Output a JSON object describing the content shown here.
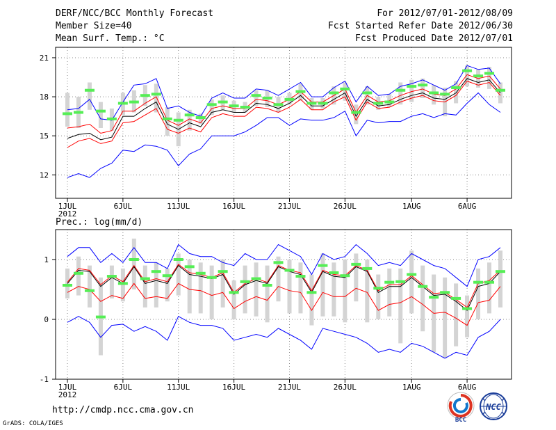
{
  "header": {
    "title": "DERF/NCC/BCC Monthly Forecast",
    "member_size": "Member Size=40",
    "variable": "Mean Surf. Temp.: °C",
    "period": "For 2012/07/01-2012/08/09",
    "refer_date": "Fcst Started Refer Date 2012/06/30",
    "produced_date": "Fcst Produced Date 2012/07/01"
  },
  "footer": {
    "url": "http://cmdp.ncc.cma.gov.cn",
    "grads_credit": "GrADS: COLA/IGES",
    "logo_bcc_text": "BCC",
    "logo_ncc_text": "NCC"
  },
  "colors": {
    "box": "#d4d4d4",
    "ensemble_mean": "#000000",
    "envelope": "#0000ff",
    "lower_line": "#ff0000",
    "observed": "#55ee55",
    "grid": "#888888"
  },
  "chart_data": [
    {
      "type": "line",
      "title": "Mean Surf. Temp.: °C",
      "x_tick_labels": [
        "1JUL",
        "6JUL",
        "11JUL",
        "16JUL",
        "21JUL",
        "26JUL",
        "1AUG",
        "6AUG"
      ],
      "x_tick_days": [
        1,
        6,
        11,
        16,
        21,
        26,
        32,
        37
      ],
      "x_year_label": "2012",
      "days": [
        1,
        2,
        3,
        4,
        5,
        6,
        7,
        8,
        9,
        10,
        11,
        12,
        13,
        14,
        15,
        16,
        17,
        18,
        19,
        20,
        21,
        22,
        23,
        24,
        25,
        26,
        27,
        28,
        29,
        30,
        31,
        32,
        33,
        34,
        35,
        36,
        37,
        38,
        39,
        40
      ],
      "ylim": [
        10.2,
        21.8
      ],
      "yticks": [
        12,
        15,
        18,
        21
      ],
      "series": [
        {
          "name": "ensemble_max",
          "color": "#0000ff",
          "values": [
            17.0,
            17.1,
            17.8,
            16.3,
            16.2,
            17.6,
            18.9,
            19.0,
            19.4,
            17.1,
            17.3,
            16.8,
            16.5,
            17.9,
            18.3,
            17.9,
            17.9,
            18.6,
            18.5,
            18.1,
            18.6,
            19.1,
            18.0,
            18.0,
            18.7,
            19.2,
            17.6,
            18.8,
            18.1,
            18.2,
            18.8,
            19.0,
            19.3,
            18.9,
            18.5,
            19.0,
            20.4,
            20.1,
            20.2,
            19.0
          ]
        },
        {
          "name": "ensemble_mean",
          "color": "#000000",
          "values": [
            14.8,
            15.1,
            15.2,
            14.7,
            14.9,
            16.5,
            16.5,
            17.1,
            17.6,
            15.9,
            15.5,
            16.0,
            15.7,
            16.8,
            17.0,
            16.8,
            16.8,
            17.5,
            17.4,
            17.1,
            17.5,
            18.1,
            17.3,
            17.3,
            17.8,
            18.3,
            16.5,
            17.8,
            17.3,
            17.4,
            17.8,
            18.1,
            18.3,
            17.9,
            17.8,
            18.3,
            19.4,
            19.1,
            19.3,
            18.3
          ]
        },
        {
          "name": "lower_line",
          "color": "#ff0000",
          "values": [
            14.1,
            14.6,
            14.8,
            14.4,
            14.6,
            16.0,
            16.1,
            16.6,
            17.1,
            15.5,
            15.2,
            15.6,
            15.3,
            16.4,
            16.7,
            16.5,
            16.5,
            17.2,
            17.1,
            16.8,
            17.2,
            17.8,
            17.0,
            17.0,
            17.6,
            18.0,
            16.2,
            17.6,
            17.1,
            17.2,
            17.6,
            17.9,
            18.1,
            17.7,
            17.6,
            18.1,
            19.2,
            18.9,
            19.1,
            18.1
          ]
        },
        {
          "name": "upper_line",
          "color": "#ff0000",
          "values": [
            15.6,
            15.7,
            15.9,
            15.2,
            15.4,
            16.9,
            16.9,
            17.5,
            18.0,
            16.2,
            15.8,
            16.3,
            16.0,
            17.1,
            17.3,
            17.1,
            17.1,
            17.8,
            17.7,
            17.4,
            17.8,
            18.4,
            17.6,
            17.6,
            18.1,
            18.6,
            16.8,
            18.1,
            17.6,
            17.7,
            18.1,
            18.4,
            18.6,
            18.2,
            18.1,
            18.6,
            19.7,
            19.4,
            19.6,
            18.6
          ]
        },
        {
          "name": "ensemble_min",
          "color": "#0000ff",
          "values": [
            11.8,
            12.1,
            11.8,
            12.5,
            12.9,
            13.9,
            13.8,
            14.3,
            14.2,
            13.9,
            12.7,
            13.6,
            14.0,
            15.0,
            15.0,
            15.0,
            15.3,
            15.8,
            16.4,
            16.4,
            15.8,
            16.3,
            16.2,
            16.2,
            16.4,
            16.9,
            15.0,
            16.2,
            16.0,
            16.1,
            16.1,
            16.5,
            16.7,
            16.4,
            16.7,
            16.6,
            17.5,
            18.3,
            17.4,
            16.8
          ]
        },
        {
          "name": "observed",
          "color": "#55ee55",
          "values": [
            16.7,
            16.8,
            18.5,
            16.9,
            16.3,
            17.5,
            17.6,
            18.1,
            18.2,
            16.3,
            16.2,
            16.6,
            16.4,
            17.4,
            17.6,
            17.3,
            17.2,
            18.1,
            17.9,
            17.4,
            17.8,
            18.4,
            17.5,
            17.5,
            18.3,
            18.6,
            16.8,
            18.3,
            17.5,
            17.6,
            18.5,
            18.8,
            18.9,
            18.3,
            18.2,
            18.7,
            20.0,
            19.6,
            19.8,
            18.5
          ]
        },
        {
          "name": "box_top",
          "color": "#d4d4d4",
          "values": [
            18.3,
            18.0,
            19.1,
            17.6,
            17.1,
            18.3,
            18.5,
            18.9,
            19.0,
            17.2,
            16.8,
            17.0,
            16.7,
            17.8,
            18.1,
            17.7,
            17.6,
            18.5,
            18.5,
            18.0,
            18.3,
            19.0,
            17.9,
            17.9,
            18.8,
            19.1,
            17.4,
            18.8,
            18.0,
            18.2,
            19.1,
            19.3,
            19.4,
            18.9,
            18.7,
            19.2,
            20.4,
            20.1,
            20.3,
            19.1
          ]
        },
        {
          "name": "box_bottom",
          "color": "#d4d4d4",
          "values": [
            15.7,
            15.6,
            17.0,
            15.6,
            15.4,
            16.6,
            16.8,
            17.3,
            16.8,
            15.0,
            14.2,
            15.4,
            15.9,
            16.6,
            17.0,
            16.8,
            16.8,
            17.3,
            17.2,
            16.8,
            17.4,
            17.7,
            17.0,
            17.1,
            17.4,
            17.7,
            15.9,
            17.4,
            17.0,
            17.2,
            17.4,
            17.6,
            17.9,
            17.4,
            16.5,
            17.5,
            18.8,
            18.7,
            18.6,
            17.5
          ]
        }
      ]
    },
    {
      "type": "line",
      "title": "Prec.: log(mm/d)",
      "x_tick_labels": [
        "1JUL",
        "6JUL",
        "11JUL",
        "16JUL",
        "21JUL",
        "26JUL",
        "1AUG",
        "6AUG"
      ],
      "x_tick_days": [
        1,
        6,
        11,
        16,
        21,
        26,
        32,
        37
      ],
      "x_year_label": "2012",
      "days": [
        1,
        2,
        3,
        4,
        5,
        6,
        7,
        8,
        9,
        10,
        11,
        12,
        13,
        14,
        15,
        16,
        17,
        18,
        19,
        20,
        21,
        22,
        23,
        24,
        25,
        26,
        27,
        28,
        29,
        30,
        31,
        32,
        33,
        34,
        35,
        36,
        37,
        38,
        39,
        40
      ],
      "ylim": [
        -1.0,
        1.5
      ],
      "yticks": [
        -1,
        0,
        1
      ],
      "series": [
        {
          "name": "ensemble_max",
          "color": "#0000ff",
          "values": [
            1.05,
            1.2,
            1.2,
            0.95,
            1.1,
            0.95,
            1.2,
            0.95,
            0.95,
            0.85,
            1.25,
            1.1,
            1.05,
            1.05,
            0.95,
            0.9,
            1.1,
            1.0,
            1.0,
            1.25,
            1.15,
            1.05,
            0.75,
            1.1,
            1.0,
            1.05,
            1.25,
            1.1,
            0.9,
            0.95,
            0.9,
            1.1,
            1.0,
            0.9,
            0.85,
            0.7,
            0.55,
            1.0,
            1.05,
            1.2
          ]
        },
        {
          "name": "ensemble_mean",
          "color": "#000000",
          "values": [
            0.6,
            0.82,
            0.8,
            0.55,
            0.7,
            0.6,
            0.88,
            0.6,
            0.65,
            0.6,
            0.9,
            0.75,
            0.72,
            0.68,
            0.75,
            0.42,
            0.58,
            0.65,
            0.6,
            0.88,
            0.8,
            0.75,
            0.45,
            0.8,
            0.72,
            0.7,
            0.88,
            0.8,
            0.45,
            0.55,
            0.55,
            0.7,
            0.55,
            0.4,
            0.42,
            0.3,
            0.15,
            0.55,
            0.6,
            0.8
          ]
        },
        {
          "name": "upper_line",
          "color": "#ff0000",
          "values": [
            0.62,
            0.85,
            0.82,
            0.58,
            0.73,
            0.63,
            0.9,
            0.63,
            0.68,
            0.63,
            0.92,
            0.78,
            0.75,
            0.7,
            0.78,
            0.45,
            0.6,
            0.68,
            0.62,
            0.9,
            0.82,
            0.78,
            0.48,
            0.82,
            0.75,
            0.73,
            0.9,
            0.82,
            0.48,
            0.58,
            0.58,
            0.73,
            0.58,
            0.43,
            0.45,
            0.33,
            0.2,
            0.6,
            0.65,
            0.82
          ]
        },
        {
          "name": "lower_line",
          "color": "#ff0000",
          "values": [
            0.45,
            0.55,
            0.5,
            0.3,
            0.4,
            0.35,
            0.6,
            0.35,
            0.38,
            0.35,
            0.6,
            0.5,
            0.48,
            0.4,
            0.45,
            0.18,
            0.3,
            0.38,
            0.32,
            0.55,
            0.48,
            0.45,
            0.15,
            0.45,
            0.38,
            0.38,
            0.52,
            0.45,
            0.15,
            0.25,
            0.28,
            0.38,
            0.25,
            0.1,
            0.12,
            0.02,
            -0.1,
            0.28,
            0.32,
            0.55
          ]
        },
        {
          "name": "ensemble_min",
          "color": "#0000ff",
          "values": [
            -0.05,
            0.05,
            -0.05,
            -0.3,
            -0.1,
            -0.08,
            -0.2,
            -0.12,
            -0.2,
            -0.35,
            0.05,
            -0.05,
            -0.1,
            -0.1,
            -0.15,
            -0.35,
            -0.3,
            -0.25,
            -0.3,
            -0.15,
            -0.25,
            -0.35,
            -0.5,
            -0.15,
            -0.2,
            -0.25,
            -0.3,
            -0.4,
            -0.55,
            -0.5,
            -0.55,
            -0.4,
            -0.45,
            -0.55,
            -0.65,
            -0.55,
            -0.6,
            -0.3,
            -0.2,
            0.0
          ]
        },
        {
          "name": "observed",
          "color": "#55ee55",
          "values": [
            0.57,
            0.77,
            0.48,
            0.04,
            0.72,
            0.6,
            1.0,
            0.68,
            0.8,
            0.73,
            1.0,
            0.88,
            0.77,
            0.7,
            0.8,
            0.45,
            0.63,
            0.68,
            0.57,
            0.95,
            0.82,
            0.72,
            0.45,
            0.9,
            0.78,
            0.73,
            0.92,
            0.85,
            0.52,
            0.62,
            0.63,
            0.75,
            0.55,
            0.37,
            0.45,
            0.35,
            0.18,
            0.62,
            0.62,
            0.8
          ]
        },
        {
          "name": "box_top",
          "color": "#d4d4d4",
          "values": [
            0.85,
            1.05,
            0.9,
            0.7,
            0.9,
            0.85,
            1.35,
            0.9,
            0.95,
            0.85,
            1.1,
            1.0,
            0.95,
            0.9,
            1.0,
            0.65,
            0.9,
            0.95,
            0.9,
            1.05,
            1.0,
            0.95,
            0.75,
            1.1,
            0.95,
            1.0,
            1.1,
            1.0,
            0.75,
            0.85,
            0.85,
            1.15,
            0.9,
            0.75,
            0.7,
            0.6,
            0.4,
            0.85,
            0.95,
            1.15
          ]
        },
        {
          "name": "box_bottom",
          "color": "#d4d4d4",
          "values": [
            0.35,
            0.4,
            0.2,
            -0.6,
            0.35,
            0.3,
            0.5,
            0.2,
            0.2,
            0.3,
            0.4,
            0.1,
            0.1,
            0.0,
            0.2,
            0.0,
            0.1,
            0.05,
            -0.05,
            0.3,
            0.1,
            0.1,
            -0.1,
            0.05,
            0.05,
            -0.05,
            0.3,
            -0.05,
            0.0,
            0.05,
            -0.4,
            0.1,
            -0.2,
            -0.55,
            -0.65,
            -0.45,
            -0.3,
            0.0,
            0.1,
            0.2
          ]
        }
      ]
    }
  ]
}
